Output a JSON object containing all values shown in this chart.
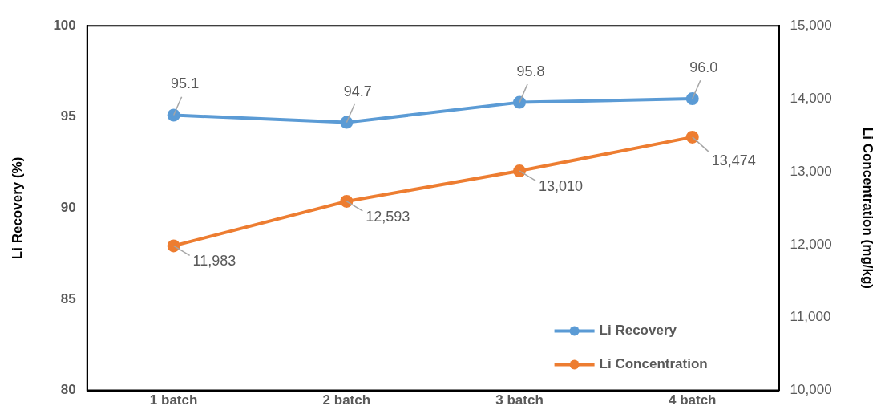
{
  "chart_data": {
    "type": "line",
    "categories": [
      "1 batch",
      "2 batch",
      "3 batch",
      "4 batch"
    ],
    "ylabel": "Li Recovery (%)",
    "y2label": "Li Concentration (mg/kg)",
    "ylim": [
      80,
      100
    ],
    "yticks": [
      80,
      85,
      90,
      95,
      100
    ],
    "y2lim": [
      10000,
      15000
    ],
    "y2ticks": [
      {
        "value": 10000,
        "label": "10,000"
      },
      {
        "value": 11000,
        "label": "11,000"
      },
      {
        "value": 12000,
        "label": "12,000"
      },
      {
        "value": 13000,
        "label": "13,000"
      },
      {
        "value": 14000,
        "label": "14,000"
      },
      {
        "value": 15000,
        "label": "15,000"
      }
    ],
    "series": [
      {
        "name": "Li Recovery",
        "color": "#5b9bd5",
        "values": [
          95.1,
          94.7,
          95.8,
          96.0
        ],
        "value_labels": [
          "95.1",
          "94.7",
          "95.8",
          "96.0"
        ]
      },
      {
        "name": "Li Concentration",
        "color": "#ed7d31",
        "axis": "y2",
        "values": [
          11983,
          12593,
          13010,
          13474
        ],
        "value_labels": [
          "11,983",
          "12,593",
          "13,010",
          "13,474"
        ]
      }
    ],
    "marker": "circle",
    "line_style": "solid",
    "grid": false,
    "legend": "bottom right"
  }
}
